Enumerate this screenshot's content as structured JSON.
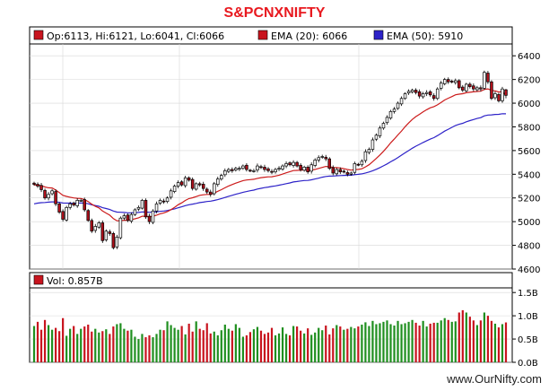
{
  "title": "S&PCNXNIFTY",
  "footer": "www.OurNifty.com",
  "legend": {
    "ohlc": "Op:6113, Hi:6121, Lo:6041, Cl:6066",
    "ema20": "EMA (20): 6066",
    "ema50": "EMA (50): 5910",
    "volume": "Vol: 0.857B"
  },
  "colors": {
    "up": "#ffffff",
    "down": "#b0101b",
    "ema20": "#cc1b1b",
    "ema50": "#2d22c8",
    "vol_up": "#1f8f1f",
    "vol_down": "#c8141e",
    "frame": "#000000",
    "grid": "#d7d7d7"
  },
  "chart_data": [
    {
      "type": "candlestick",
      "title": "S&PCNXNIFTY",
      "ylim": [
        4600,
        6500
      ],
      "y_ticks": [
        4600,
        4800,
        5000,
        5200,
        5400,
        5600,
        5800,
        6000,
        6200,
        6400
      ],
      "series": [
        {
          "name": "EMA (20)",
          "last": 6066
        },
        {
          "name": "EMA (50)",
          "last": 5910
        }
      ],
      "last_bar": {
        "open": 6113,
        "high": 6121,
        "low": 6041,
        "close": 6066
      },
      "close": [
        5315,
        5300,
        5270,
        5200,
        5230,
        5260,
        5150,
        5080,
        5020,
        5120,
        5150,
        5140,
        5180,
        5180,
        5100,
        5010,
        4920,
        4960,
        4990,
        4840,
        4920,
        4900,
        4780,
        4870,
        5030,
        5050,
        5010,
        5060,
        5100,
        5120,
        5180,
        5040,
        5000,
        5090,
        5150,
        5180,
        5170,
        5200,
        5260,
        5300,
        5330,
        5310,
        5370,
        5350,
        5280,
        5320,
        5310,
        5280,
        5250,
        5230,
        5320,
        5360,
        5390,
        5430,
        5440,
        5430,
        5450,
        5450,
        5470,
        5440,
        5430,
        5430,
        5470,
        5460,
        5440,
        5430,
        5420,
        5440,
        5450,
        5470,
        5490,
        5480,
        5500,
        5470,
        5440,
        5460,
        5420,
        5480,
        5520,
        5540,
        5550,
        5530,
        5450,
        5410,
        5440,
        5420,
        5420,
        5400,
        5410,
        5490,
        5480,
        5510,
        5590,
        5610,
        5690,
        5730,
        5790,
        5830,
        5880,
        5930,
        5950,
        6000,
        6040,
        6080,
        6100,
        6110,
        6090,
        6060,
        6080,
        6090,
        6070,
        6040,
        6120,
        6170,
        6200,
        6180,
        6180,
        6190,
        6130,
        6110,
        6160,
        6140,
        6120,
        6130,
        6120,
        6260,
        6180,
        6040,
        6080,
        6020,
        6120,
        6066
      ],
      "ema20": [
        5310,
        5308,
        5303,
        5293,
        5286,
        5284,
        5267,
        5246,
        5222,
        5213,
        5206,
        5200,
        5197,
        5196,
        5186,
        5170,
        5147,
        5129,
        5116,
        5090,
        5072,
        5055,
        5026,
        5007,
        5009,
        5012,
        5012,
        5017,
        5024,
        5032,
        5046,
        5045,
        5040,
        5045,
        5055,
        5066,
        5074,
        5085,
        5101,
        5121,
        5143,
        5159,
        5179,
        5195,
        5202,
        5212,
        5222,
        5227,
        5230,
        5230,
        5241,
        5256,
        5270,
        5286,
        5301,
        5313,
        5325,
        5336,
        5346,
        5352,
        5355,
        5358,
        5365,
        5371,
        5375,
        5378,
        5379,
        5385,
        5392,
        5402,
        5412,
        5422,
        5431,
        5433,
        5434,
        5437,
        5433,
        5436,
        5441,
        5449,
        5458,
        5466,
        5463,
        5458,
        5456,
        5453,
        5447,
        5440,
        5435,
        5439,
        5441,
        5446,
        5462,
        5480,
        5506,
        5533,
        5563,
        5594,
        5628,
        5665,
        5697,
        5732,
        5765,
        5801,
        5833,
        5863,
        5887,
        5906,
        5926,
        5945,
        5961,
        5971,
        5986,
        6006,
        6027,
        6042,
        6056,
        6071,
        6076,
        6080,
        6088,
        6092,
        6096,
        6099,
        6101,
        6116,
        6121,
        6108,
        6104,
        6094,
        6098,
        6066
      ],
      "ema50": [
        5150,
        5156,
        5160,
        5162,
        5165,
        5167,
        5166,
        5163,
        5157,
        5156,
        5156,
        5155,
        5156,
        5158,
        5156,
        5151,
        5142,
        5136,
        5130,
        5118,
        5111,
        5103,
        5090,
        5081,
        5079,
        5078,
        5075,
        5075,
        5076,
        5078,
        5082,
        5081,
        5079,
        5080,
        5083,
        5087,
        5090,
        5094,
        5101,
        5108,
        5117,
        5125,
        5135,
        5143,
        5148,
        5154,
        5161,
        5165,
        5170,
        5173,
        5179,
        5186,
        5195,
        5204,
        5214,
        5222,
        5231,
        5239,
        5248,
        5254,
        5261,
        5266,
        5275,
        5281,
        5287,
        5292,
        5297,
        5302,
        5308,
        5314,
        5321,
        5327,
        5335,
        5339,
        5343,
        5347,
        5348,
        5353,
        5360,
        5367,
        5375,
        5381,
        5384,
        5385,
        5387,
        5389,
        5390,
        5391,
        5392,
        5396,
        5399,
        5403,
        5411,
        5419,
        5430,
        5442,
        5456,
        5471,
        5487,
        5505,
        5522,
        5541,
        5561,
        5581,
        5600,
        5620,
        5637,
        5652,
        5668,
        5683,
        5697,
        5709,
        5726,
        5745,
        5764,
        5780,
        5796,
        5812,
        5822,
        5830,
        5843,
        5853,
        5862,
        5871,
        5878,
        5893,
        5900,
        5901,
        5905,
        5906,
        5911,
        5910
      ]
    },
    {
      "type": "bar",
      "title": "",
      "ylabel": "Vol",
      "ylim": [
        0,
        1.6
      ],
      "y_ticks": [
        0,
        0.5,
        1.0,
        1.5
      ],
      "y_tick_labels": [
        "0.0B",
        "0.5B",
        "1.0B",
        "1.5B"
      ],
      "last": 0.857,
      "values": [
        0.78,
        0.87,
        0.7,
        0.91,
        0.8,
        0.7,
        0.74,
        0.67,
        0.95,
        0.57,
        0.72,
        0.78,
        0.61,
        0.72,
        0.77,
        0.81,
        0.66,
        0.72,
        0.64,
        0.67,
        0.71,
        0.61,
        0.77,
        0.82,
        0.84,
        0.72,
        0.68,
        0.7,
        0.55,
        0.5,
        0.61,
        0.54,
        0.58,
        0.54,
        0.61,
        0.7,
        0.69,
        0.88,
        0.8,
        0.74,
        0.7,
        0.78,
        0.6,
        0.83,
        0.66,
        0.88,
        0.72,
        0.69,
        0.84,
        0.62,
        0.66,
        0.58,
        0.69,
        0.81,
        0.72,
        0.68,
        0.82,
        0.74,
        0.55,
        0.58,
        0.65,
        0.71,
        0.76,
        0.68,
        0.61,
        0.64,
        0.74,
        0.58,
        0.62,
        0.75,
        0.61,
        0.58,
        0.78,
        0.77,
        0.68,
        0.62,
        0.73,
        0.59,
        0.64,
        0.74,
        0.69,
        0.79,
        0.6,
        0.73,
        0.8,
        0.77,
        0.7,
        0.72,
        0.76,
        0.73,
        0.77,
        0.81,
        0.86,
        0.78,
        0.89,
        0.82,
        0.84,
        0.87,
        0.9,
        0.82,
        0.79,
        0.89,
        0.82,
        0.84,
        0.87,
        0.91,
        0.85,
        0.79,
        0.89,
        0.77,
        0.83,
        0.85,
        0.85,
        0.9,
        0.95,
        0.91,
        0.87,
        0.88,
        1.07,
        1.12,
        1.07,
        0.98,
        0.9,
        0.8,
        0.9,
        1.07,
        1.0,
        0.89,
        0.83,
        0.75,
        0.82,
        0.857
      ]
    }
  ]
}
